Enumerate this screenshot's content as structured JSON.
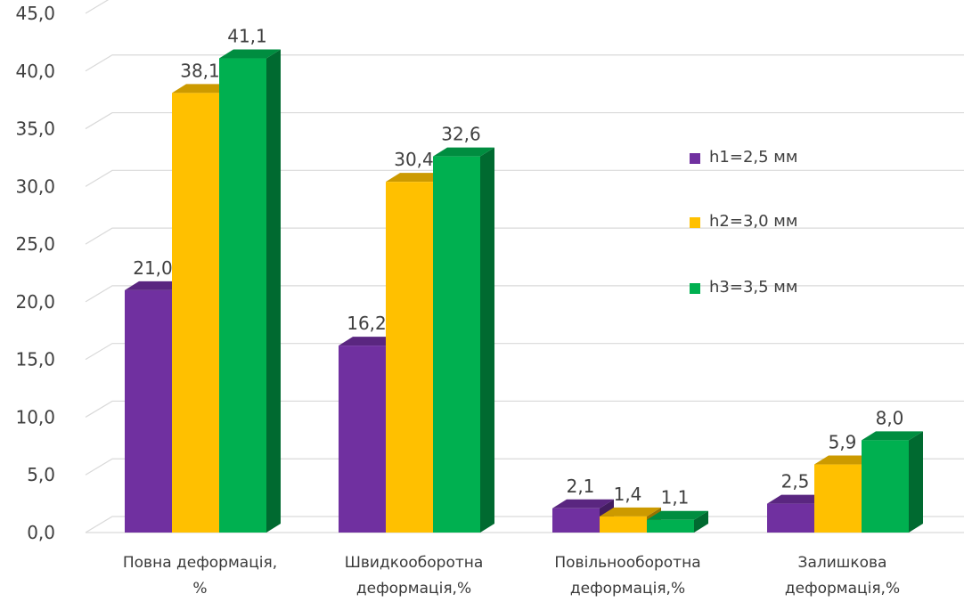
{
  "chart_data": {
    "type": "bar",
    "categories": [
      [
        "Повна деформація,",
        "%"
      ],
      [
        "Швидкооборотна",
        "деформація,%"
      ],
      [
        "Повільнооборотна",
        "деформація,%"
      ],
      [
        "Залишкова",
        "деформація,%"
      ]
    ],
    "series": [
      {
        "name": "h1=2,5 мм",
        "values": [
          21.0,
          16.2,
          2.1,
          2.5
        ],
        "color": "#7030A0"
      },
      {
        "name": "h2=3,0 мм",
        "values": [
          38.1,
          30.4,
          1.4,
          5.9
        ],
        "color": "#FFC000"
      },
      {
        "name": "h3=3,5 мм",
        "values": [
          41.1,
          32.6,
          1.1,
          8.0
        ],
        "color": "#00B050"
      }
    ],
    "data_labels": [
      [
        "21,0",
        "16,2",
        "2,1",
        "2,5"
      ],
      [
        "38,1",
        "30,4",
        "1,4",
        "5,9"
      ],
      [
        "41,1",
        "32,6",
        "1,1",
        "8,0"
      ]
    ],
    "y_ticks": [
      "0,0",
      "5,0",
      "10,0",
      "15,0",
      "20,0",
      "25,0",
      "30,0",
      "35,0",
      "40,0",
      "45,0"
    ],
    "ylim": [
      0,
      45
    ],
    "title": "",
    "xlabel": "",
    "ylabel": "",
    "grid": true,
    "legend_position": "right",
    "style": "3d-clustered-column"
  }
}
